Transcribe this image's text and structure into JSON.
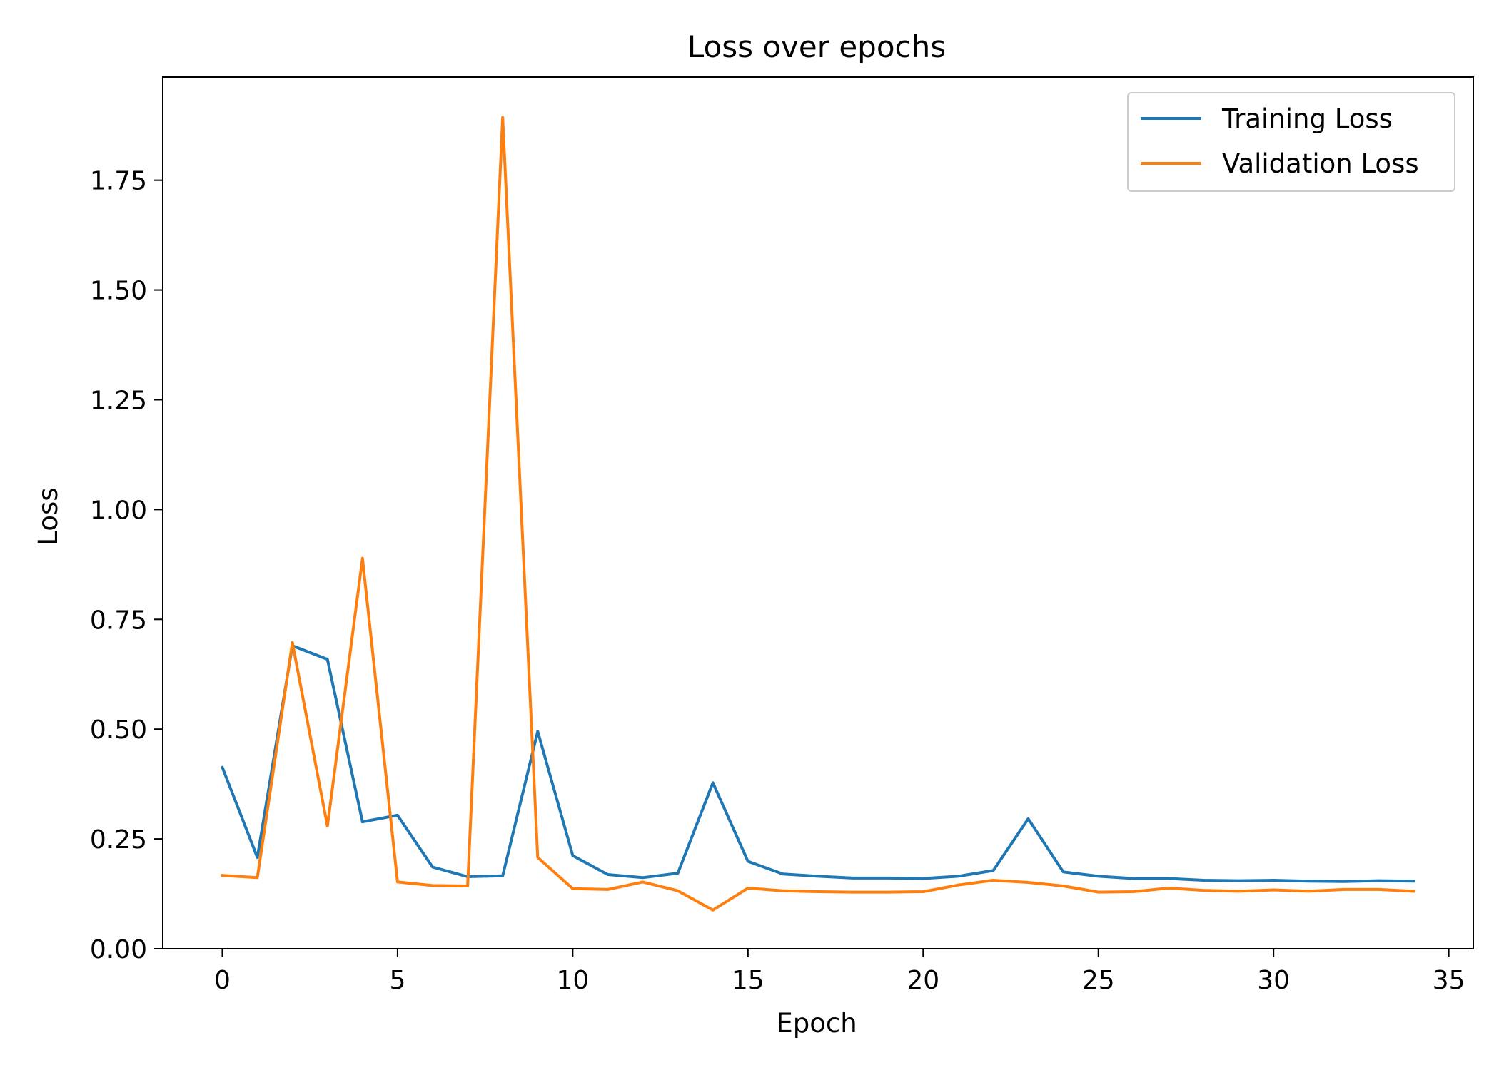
{
  "chart_data": {
    "type": "line",
    "title": "Loss over epochs",
    "xlabel": "Epoch",
    "ylabel": "Loss",
    "xlim": [
      -1.7,
      35.7
    ],
    "ylim": [
      0,
      1.985
    ],
    "xticks": [
      0,
      5,
      10,
      15,
      20,
      25,
      30,
      35
    ],
    "yticks": [
      0.0,
      0.25,
      0.5,
      0.75,
      1.0,
      1.25,
      1.5,
      1.75
    ],
    "xtick_labels": [
      "0",
      "5",
      "10",
      "15",
      "20",
      "25",
      "30",
      "35"
    ],
    "ytick_labels": [
      "0.00",
      "0.25",
      "0.50",
      "0.75",
      "1.00",
      "1.25",
      "1.50",
      "1.75"
    ],
    "grid": false,
    "legend_position": "top-right",
    "x": [
      0,
      1,
      2,
      3,
      4,
      5,
      6,
      7,
      8,
      9,
      10,
      11,
      12,
      13,
      14,
      15,
      16,
      17,
      18,
      19,
      20,
      21,
      22,
      23,
      24,
      25,
      26,
      27,
      28,
      29,
      30,
      31,
      32,
      33,
      34
    ],
    "series": [
      {
        "name": "Training Loss",
        "color": "#1f77b4",
        "values": [
          0.413,
          0.208,
          0.69,
          0.659,
          0.289,
          0.304,
          0.186,
          0.164,
          0.166,
          0.495,
          0.212,
          0.169,
          0.162,
          0.172,
          0.378,
          0.199,
          0.17,
          0.165,
          0.161,
          0.161,
          0.16,
          0.165,
          0.178,
          0.296,
          0.175,
          0.165,
          0.16,
          0.16,
          0.156,
          0.155,
          0.156,
          0.154,
          0.153,
          0.155,
          0.154
        ]
      },
      {
        "name": "Validation Loss",
        "color": "#ff7f0e",
        "values": [
          0.167,
          0.162,
          0.697,
          0.279,
          0.889,
          0.152,
          0.144,
          0.143,
          1.893,
          0.208,
          0.137,
          0.135,
          0.152,
          0.132,
          0.088,
          0.138,
          0.132,
          0.13,
          0.129,
          0.129,
          0.13,
          0.145,
          0.156,
          0.151,
          0.143,
          0.129,
          0.13,
          0.138,
          0.133,
          0.131,
          0.134,
          0.131,
          0.135,
          0.135,
          0.131
        ]
      }
    ]
  }
}
